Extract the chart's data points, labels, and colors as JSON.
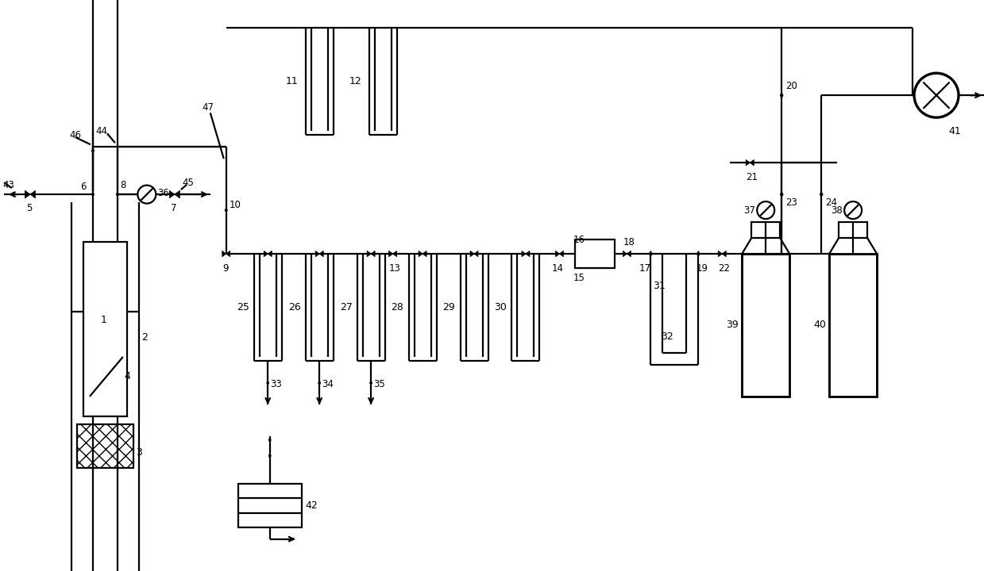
{
  "bg_color": "#ffffff",
  "lc": "#000000",
  "lw": 1.6,
  "figsize": [
    12.39,
    7.2
  ],
  "dpi": 100
}
